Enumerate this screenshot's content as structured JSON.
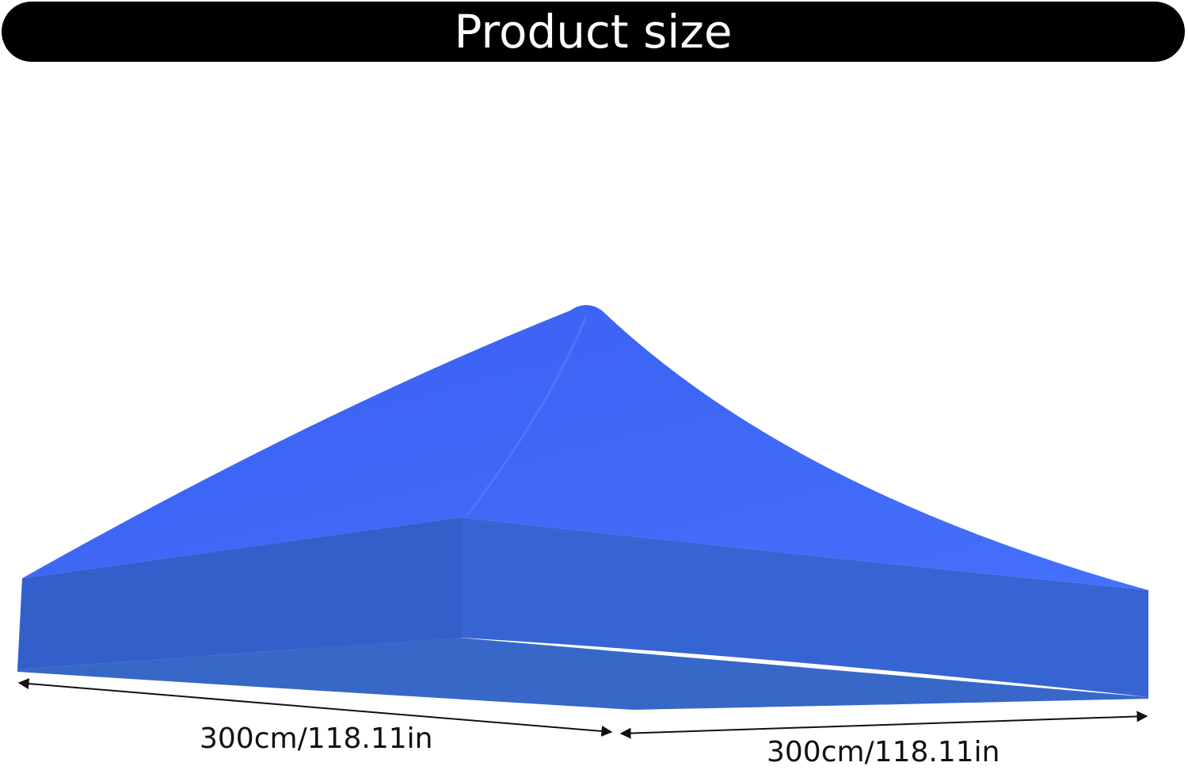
{
  "header": {
    "title": "Product size"
  },
  "product": {
    "name": "canopy-top",
    "color": "#3d6cf8"
  },
  "dimensions": {
    "left_side": "300cm/118.11in",
    "right_side": "300cm/118.11in"
  }
}
